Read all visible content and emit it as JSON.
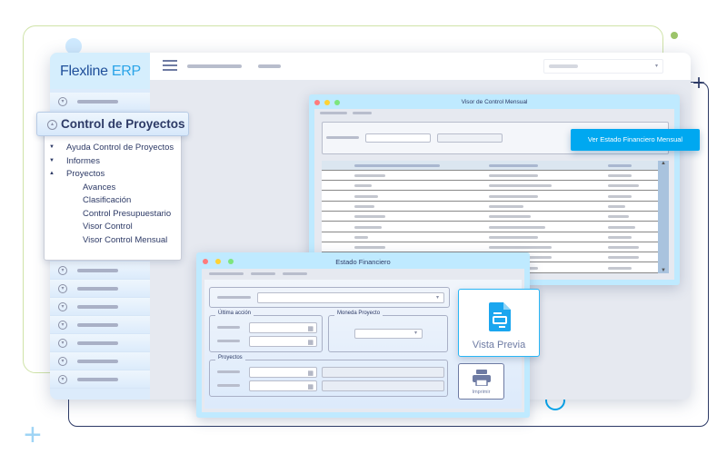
{
  "brand": {
    "name": "Flexline",
    "suffix": "ERP"
  },
  "sidebar": {
    "section_title": "Control de Proyectos",
    "menu": [
      {
        "label": "Ayuda Control de Proyectos",
        "state": "collapsed"
      },
      {
        "label": "Informes",
        "state": "collapsed"
      },
      {
        "label": "Proyectos",
        "state": "expanded"
      }
    ],
    "submenu": [
      "Avances",
      "Clasificación",
      "Control Presupuestario",
      "Visor Control",
      "Visor Control Mensual"
    ]
  },
  "visor": {
    "title": "Visor de Control Mensual",
    "action_button": "Ver Estado Financiero Mensual"
  },
  "estado": {
    "title": "Estado Financiero",
    "group_ultima": "Última acción",
    "group_moneda": "Moneda Proyecto",
    "group_proyectos": "Proyectos",
    "preview_button": "Vista Previa",
    "print_button": "Imprimir"
  },
  "colors": {
    "accent": "#00a8f0",
    "navy": "#2d3a66",
    "lime": "#b8d98a",
    "window": "#bfeaff"
  }
}
